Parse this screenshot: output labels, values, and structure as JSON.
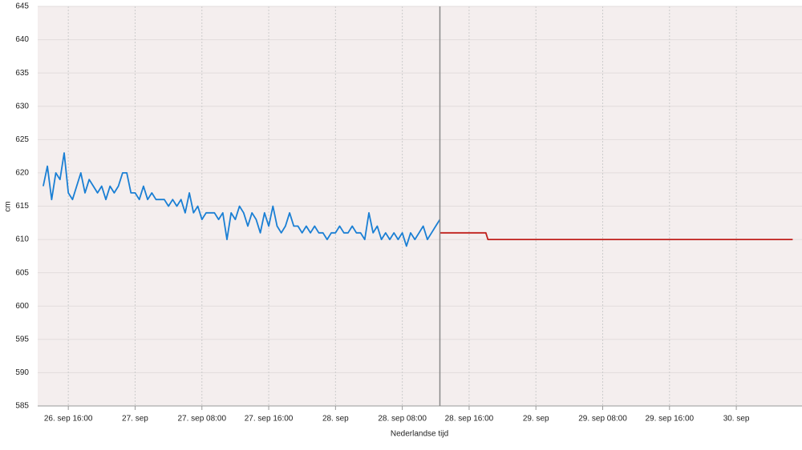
{
  "chart_data": {
    "type": "line",
    "ylabel": "cm",
    "xlabel": "Nederlandse tijd",
    "ylim": [
      585,
      645
    ],
    "yticks": [
      585,
      590,
      595,
      600,
      605,
      610,
      615,
      620,
      625,
      630,
      635,
      640,
      645
    ],
    "xlim": [
      "09-26T12:20",
      "09-30T07:52"
    ],
    "xticks": [
      {
        "value": "09-26T16:00",
        "label": "26. sep 16:00"
      },
      {
        "value": "09-27T00:00",
        "label": "27. sep"
      },
      {
        "value": "09-27T08:00",
        "label": "27. sep 08:00"
      },
      {
        "value": "09-27T16:00",
        "label": "27. sep 16:00"
      },
      {
        "value": "09-28T00:00",
        "label": "28. sep"
      },
      {
        "value": "09-28T08:00",
        "label": "28. sep 08:00"
      },
      {
        "value": "09-28T16:00",
        "label": "28. sep 16:00"
      },
      {
        "value": "09-29T00:00",
        "label": "29. sep"
      },
      {
        "value": "09-29T08:00",
        "label": "29. sep 08:00"
      },
      {
        "value": "09-29T16:00",
        "label": "29. sep 16:00"
      },
      {
        "value": "09-30T00:00",
        "label": "30. sep"
      }
    ],
    "grid": true,
    "now_marker": "09-28T12:30",
    "series": [
      {
        "color": "#1a7fd4",
        "x": [
          "09-26T13:00",
          "09-26T13:30",
          "09-26T14:00",
          "09-26T14:30",
          "09-26T15:00",
          "09-26T15:30",
          "09-26T16:00",
          "09-26T16:30",
          "09-26T17:00",
          "09-26T17:30",
          "09-26T18:00",
          "09-26T18:30",
          "09-26T19:00",
          "09-26T19:30",
          "09-26T20:00",
          "09-26T20:30",
          "09-26T21:00",
          "09-26T21:30",
          "09-26T22:00",
          "09-26T22:30",
          "09-26T23:00",
          "09-26T23:30",
          "09-27T00:00",
          "09-27T00:30",
          "09-27T01:00",
          "09-27T01:30",
          "09-27T02:00",
          "09-27T02:30",
          "09-27T03:00",
          "09-27T03:30",
          "09-27T04:00",
          "09-27T04:30",
          "09-27T05:00",
          "09-27T05:30",
          "09-27T06:00",
          "09-27T06:30",
          "09-27T07:00",
          "09-27T07:30",
          "09-27T08:00",
          "09-27T08:30",
          "09-27T09:00",
          "09-27T09:30",
          "09-27T10:00",
          "09-27T10:30",
          "09-27T11:00",
          "09-27T11:30",
          "09-27T12:00",
          "09-27T12:30",
          "09-27T13:00",
          "09-27T13:30",
          "09-27T14:00",
          "09-27T14:30",
          "09-27T15:00",
          "09-27T15:30",
          "09-27T16:00",
          "09-27T16:30",
          "09-27T17:00",
          "09-27T17:30",
          "09-27T18:00",
          "09-27T18:30",
          "09-27T19:00",
          "09-27T19:30",
          "09-27T20:00",
          "09-27T20:30",
          "09-27T21:00",
          "09-27T21:30",
          "09-27T22:00",
          "09-27T22:30",
          "09-27T23:00",
          "09-27T23:30",
          "09-28T00:00",
          "09-28T00:30",
          "09-28T01:00",
          "09-28T01:30",
          "09-28T02:00",
          "09-28T02:30",
          "09-28T03:00",
          "09-28T03:30",
          "09-28T04:00",
          "09-28T04:30",
          "09-28T05:00",
          "09-28T05:30",
          "09-28T06:00",
          "09-28T06:30",
          "09-28T07:00",
          "09-28T07:30",
          "09-28T08:00",
          "09-28T08:30",
          "09-28T09:00",
          "09-28T09:30",
          "09-28T10:00",
          "09-28T10:30",
          "09-28T11:00",
          "09-28T11:30",
          "09-28T12:00",
          "09-28T12:30"
        ],
        "values": [
          618,
          621,
          616,
          620,
          619,
          623,
          617,
          616,
          618,
          620,
          617,
          619,
          618,
          617,
          618,
          616,
          618,
          617,
          618,
          620,
          620,
          617,
          617,
          616,
          618,
          616,
          617,
          616,
          616,
          616,
          615,
          616,
          615,
          616,
          614,
          617,
          614,
          615,
          613,
          614,
          614,
          614,
          613,
          614,
          610,
          614,
          613,
          615,
          614,
          612,
          614,
          613,
          611,
          614,
          612,
          615,
          612,
          611,
          612,
          614,
          612,
          612,
          611,
          612,
          611,
          612,
          611,
          611,
          610,
          611,
          611,
          612,
          611,
          611,
          612,
          611,
          611,
          610,
          614,
          611,
          612,
          610,
          611,
          610,
          611,
          610,
          611,
          609,
          611,
          610,
          611,
          612,
          610,
          611,
          612,
          613
        ]
      },
      {
        "color": "#c0201c",
        "x": [
          "09-28T12:30",
          "09-28T18:00",
          "09-28T18:15",
          "09-30T06:45"
        ],
        "values": [
          611,
          611,
          610,
          610
        ]
      }
    ]
  }
}
